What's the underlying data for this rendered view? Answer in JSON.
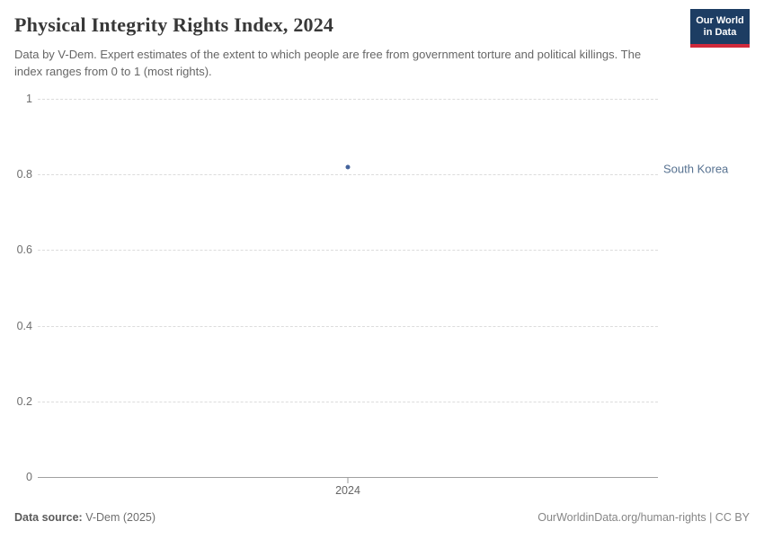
{
  "header": {
    "title": "Physical Integrity Rights Index, 2024",
    "subtitle": "Data by V-Dem. Expert estimates of the extent to which people are free from government torture and political killings. The index ranges from 0 to 1 (most rights).",
    "logo": {
      "line1": "Our World",
      "line2": "in Data",
      "bg_color": "#1d3d63",
      "accent_color": "#d0293b"
    }
  },
  "chart_data": {
    "type": "scatter",
    "title": "Physical Integrity Rights Index, 2024",
    "xlabel": "",
    "ylabel": "",
    "x": [
      "2024"
    ],
    "series": [
      {
        "name": "South Korea",
        "values": [
          0.82
        ],
        "color": "#44639c",
        "label_color": "#577291"
      }
    ],
    "ylim": [
      0,
      1
    ],
    "yticks": [
      0,
      0.2,
      0.4,
      0.6,
      0.8,
      1
    ],
    "xticks": [
      "2024"
    ],
    "grid": "horizontal-dashed",
    "legend_position": "right-of-point"
  },
  "footer": {
    "source_label": "Data source:",
    "source_value": "V-Dem (2025)",
    "credit": "OurWorldinData.org/human-rights | CC BY"
  }
}
